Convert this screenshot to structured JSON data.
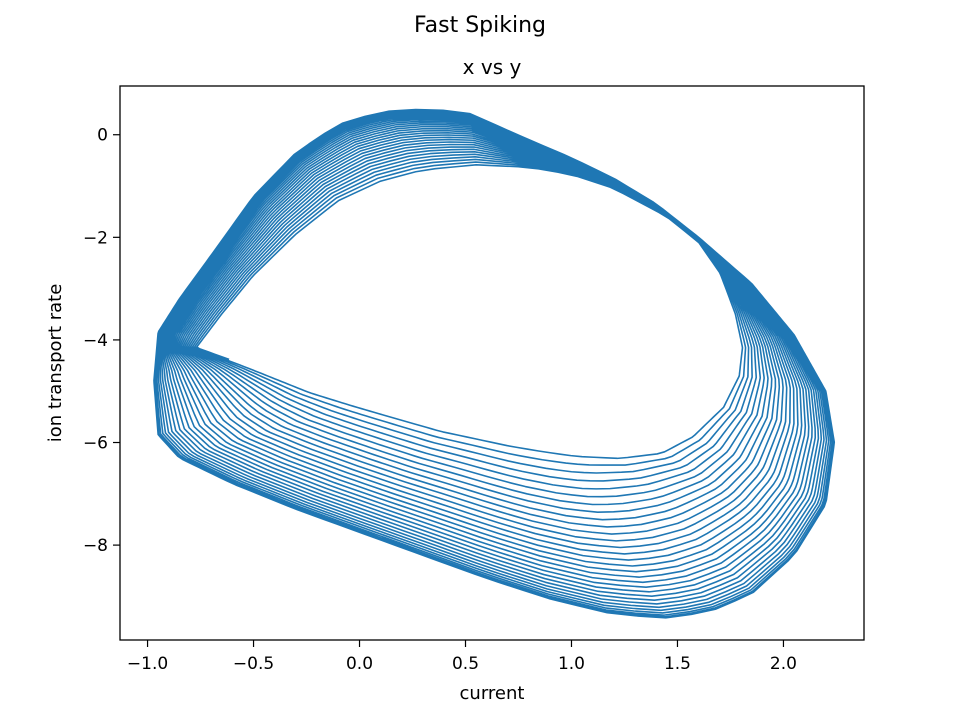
{
  "figure": {
    "suptitle": "Fast Spiking"
  },
  "chart_data": {
    "type": "line",
    "title": "x vs y",
    "xlabel": "current",
    "ylabel": "ion transport rate",
    "xlim": [
      -1.13,
      2.38
    ],
    "ylim": [
      -9.85,
      0.95
    ],
    "xticks": [
      -1.0,
      -0.5,
      0.0,
      0.5,
      1.0,
      1.5,
      2.0
    ],
    "xtick_labels": [
      "−1.0",
      "−0.5",
      "0.0",
      "0.5",
      "1.0",
      "1.5",
      "2.0"
    ],
    "yticks": [
      0,
      -2,
      -4,
      -6,
      -8
    ],
    "ytick_labels": [
      "0",
      "−2",
      "−4",
      "−6",
      "−8"
    ],
    "grid": false,
    "legend": "none",
    "colors": {
      "series": "#1f77b4"
    },
    "series": [
      {
        "description": "phase-plane trajectory spiralling outward over ~30 cycles",
        "cycles": 30,
        "first_cycle": [
          [
            -0.77,
            -4.15
          ],
          [
            -0.5,
            -4.55
          ],
          [
            -0.2,
            -5.0
          ],
          [
            0.1,
            -5.35
          ],
          [
            0.4,
            -5.7
          ],
          [
            0.7,
            -5.95
          ],
          [
            1.0,
            -6.15
          ],
          [
            1.2,
            -6.22
          ],
          [
            1.4,
            -6.15
          ],
          [
            1.55,
            -5.85
          ],
          [
            1.7,
            -5.3
          ],
          [
            1.78,
            -4.7
          ],
          [
            1.8,
            -4.15
          ],
          [
            1.77,
            -3.5
          ],
          [
            1.7,
            -2.7
          ],
          [
            1.6,
            -2.1
          ],
          [
            1.45,
            -1.6
          ],
          [
            1.2,
            -1.05
          ],
          [
            1.0,
            -0.78
          ],
          [
            0.8,
            -0.64
          ],
          [
            0.55,
            -0.6
          ],
          [
            0.3,
            -0.7
          ],
          [
            0.1,
            -0.92
          ],
          [
            -0.1,
            -1.3
          ],
          [
            -0.3,
            -1.95
          ],
          [
            -0.5,
            -2.75
          ],
          [
            -0.65,
            -3.5
          ],
          [
            -0.77,
            -4.15
          ]
        ],
        "last_cycle": [
          [
            -0.95,
            -3.85
          ],
          [
            -0.97,
            -4.8
          ],
          [
            -0.95,
            -5.85
          ],
          [
            -0.85,
            -6.3
          ],
          [
            -0.6,
            -6.8
          ],
          [
            -0.3,
            -7.3
          ],
          [
            0.0,
            -7.75
          ],
          [
            0.3,
            -8.2
          ],
          [
            0.6,
            -8.65
          ],
          [
            0.9,
            -9.05
          ],
          [
            1.2,
            -9.35
          ],
          [
            1.45,
            -9.42
          ],
          [
            1.65,
            -9.3
          ],
          [
            1.85,
            -8.95
          ],
          [
            2.05,
            -8.2
          ],
          [
            2.2,
            -7.2
          ],
          [
            2.24,
            -6.0
          ],
          [
            2.2,
            -5.0
          ],
          [
            2.05,
            -3.9
          ],
          [
            1.85,
            -2.9
          ],
          [
            1.6,
            -2.0
          ],
          [
            1.4,
            -1.35
          ],
          [
            1.2,
            -0.85
          ],
          [
            1.0,
            -0.45
          ],
          [
            0.8,
            -0.1
          ],
          [
            0.5,
            0.45
          ],
          [
            0.3,
            0.5
          ],
          [
            0.1,
            0.45
          ],
          [
            -0.1,
            0.2
          ],
          [
            -0.3,
            -0.35
          ],
          [
            -0.5,
            -1.2
          ],
          [
            -0.7,
            -2.35
          ],
          [
            -0.85,
            -3.2
          ],
          [
            -0.95,
            -3.85
          ]
        ]
      }
    ]
  }
}
